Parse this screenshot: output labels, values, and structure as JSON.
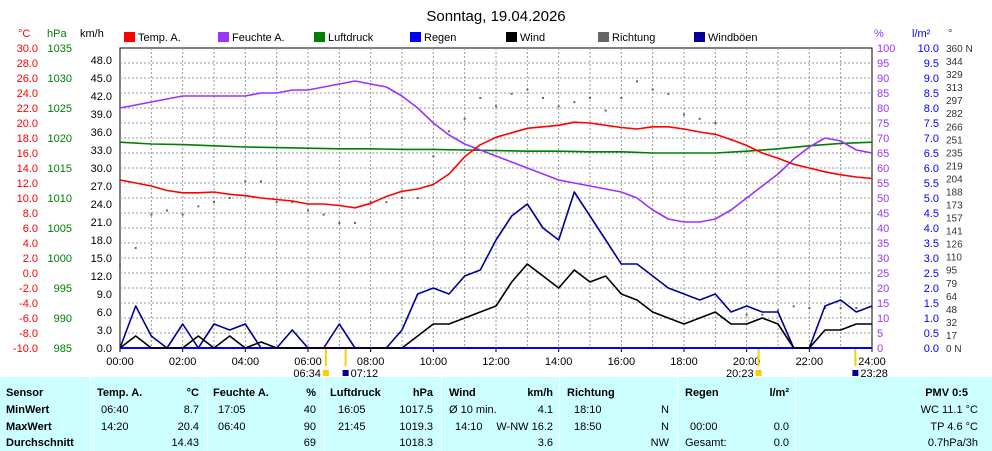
{
  "chart_data": {
    "type": "line",
    "title": "Sonntag, 19.04.2026",
    "x_ticks": [
      "00:00",
      "02:00",
      "04:00",
      "06:00",
      "08:00",
      "10:00",
      "12:00",
      "14:00",
      "16:00",
      "18:00",
      "20:00",
      "22:00",
      "24:00"
    ],
    "x_range_hours": [
      0,
      24
    ],
    "sun_markers": [
      {
        "label": "06:34",
        "time": 6.57
      },
      {
        "label": "07:12",
        "time": 7.2
      },
      {
        "label": "20:23",
        "time": 20.38
      },
      {
        "label": "23:28",
        "time": 23.47
      }
    ],
    "axes": {
      "temp": {
        "unit": "°C",
        "ylim": [
          -10,
          30
        ],
        "ticks": [
          "30.0",
          "28.0",
          "26.0",
          "24.0",
          "22.0",
          "20.0",
          "18.0",
          "16.0",
          "14.0",
          "12.0",
          "10.0",
          "8.0",
          "6.0",
          "4.0",
          "2.0",
          "0.0",
          "-2.0",
          "-4.0",
          "-6.0",
          "-8.0",
          "-10.0"
        ],
        "color": "#ff0000"
      },
      "pressure": {
        "unit": "hPa",
        "ylim": [
          985,
          1035
        ],
        "ticks": [
          "1035",
          "1030",
          "1025",
          "1020",
          "1015",
          "1010",
          "1005",
          "1000",
          "995",
          "990",
          "985"
        ],
        "color": "#008000"
      },
      "wind": {
        "unit": "km/h",
        "ylim": [
          0,
          50
        ],
        "ticks": [
          "0.0",
          "3.0",
          "6.0",
          "9.0",
          "12.0",
          "15.0",
          "18.0",
          "21.0",
          "24.0",
          "27.0",
          "30.0",
          "33.0",
          "36.0",
          "39.0",
          "42.0",
          "45.0",
          "48.0"
        ],
        "color": "#000000"
      },
      "humidity": {
        "unit": "%",
        "ylim": [
          0,
          100
        ],
        "ticks": [
          "100",
          "95",
          "90",
          "85",
          "80",
          "75",
          "70",
          "65",
          "60",
          "55",
          "50",
          "45",
          "40",
          "35",
          "30",
          "25",
          "20",
          "15",
          "10",
          "5",
          "0"
        ],
        "color": "#9933ff"
      },
      "rain": {
        "unit": "l/m²",
        "ylim": [
          0,
          10
        ],
        "ticks": [
          "10.0",
          "9.5",
          "9.0",
          "8.5",
          "8.0",
          "7.5",
          "7.0",
          "6.5",
          "6.0",
          "5.5",
          "5.0",
          "4.5",
          "4.0",
          "3.5",
          "3.0",
          "2.5",
          "2.0",
          "1.5",
          "1.0",
          "0.5",
          "0.0"
        ],
        "color": "#0000ff"
      },
      "direction": {
        "unit": "°",
        "ylim": [
          0,
          360
        ],
        "ticks": [
          "360 N",
          "344",
          "329",
          "313",
          "297",
          "282",
          "266",
          "251",
          "235",
          "219",
          "204",
          "188",
          "173",
          "157",
          "141",
          "126",
          "110",
          "95",
          "79",
          "64",
          "48",
          "32",
          "17",
          "0 N"
        ],
        "color": "#333333"
      }
    },
    "grid": true,
    "legend_position": "top",
    "series": [
      {
        "name": "Temp. A.",
        "color": "#ff0000",
        "axis": "temp",
        "x": [
          0,
          0.5,
          1,
          1.5,
          2,
          2.5,
          3,
          3.5,
          4,
          4.5,
          5,
          5.5,
          6,
          6.5,
          7,
          7.5,
          8,
          8.5,
          9,
          9.5,
          10,
          10.5,
          11,
          11.5,
          12,
          12.5,
          13,
          13.5,
          14,
          14.5,
          15,
          15.5,
          16,
          16.5,
          17,
          17.5,
          18,
          18.5,
          19,
          19.5,
          20,
          20.5,
          21,
          21.5,
          22,
          22.5,
          23,
          23.5,
          24
        ],
        "y": [
          12.4,
          12.0,
          11.6,
          11.0,
          10.7,
          10.7,
          10.8,
          10.5,
          10.3,
          10.0,
          9.8,
          9.6,
          9.2,
          9.2,
          9.0,
          8.7,
          9.3,
          10.2,
          10.9,
          11.2,
          11.8,
          13.2,
          15.5,
          17.1,
          18.1,
          18.7,
          19.3,
          19.5,
          19.7,
          20.1,
          20.0,
          19.7,
          19.4,
          19.2,
          19.5,
          19.5,
          19.2,
          18.8,
          18.5,
          17.8,
          17.0,
          16.0,
          15.3,
          14.5,
          14.0,
          13.5,
          13.1,
          12.8,
          12.6
        ]
      },
      {
        "name": "Feuchte A.",
        "color": "#9933ff",
        "axis": "humidity",
        "x": [
          0,
          0.5,
          1,
          1.5,
          2,
          2.5,
          3,
          3.5,
          4,
          4.5,
          5,
          5.5,
          6,
          6.5,
          7,
          7.5,
          8,
          8.5,
          9,
          9.5,
          10,
          10.5,
          11,
          11.5,
          12,
          12.5,
          13,
          13.5,
          14,
          14.5,
          15,
          15.5,
          16,
          16.5,
          17,
          17.5,
          18,
          18.5,
          19,
          19.5,
          20,
          20.5,
          21,
          21.5,
          22,
          22.5,
          23,
          23.5,
          24
        ],
        "y": [
          80,
          81,
          82,
          83,
          84,
          84,
          84,
          84,
          84,
          85,
          85,
          86,
          86,
          87,
          88,
          89,
          88,
          87,
          84,
          80,
          75,
          71,
          68,
          66,
          64,
          62,
          60,
          58,
          56,
          55,
          54,
          53,
          52,
          50,
          46,
          43,
          42,
          42,
          43,
          46,
          50,
          54,
          58,
          63,
          67,
          70,
          69,
          66,
          65
        ]
      },
      {
        "name": "Luftdruck",
        "color": "#008000",
        "axis": "pressure",
        "x": [
          0,
          1,
          2,
          3,
          4,
          5,
          6,
          7,
          8,
          9,
          10,
          11,
          12,
          13,
          14,
          15,
          16,
          17,
          18,
          19,
          20,
          21,
          22,
          23,
          24
        ],
        "y": [
          1019.3,
          1019.0,
          1018.9,
          1018.7,
          1018.5,
          1018.4,
          1018.3,
          1018.2,
          1018.2,
          1018.1,
          1018.1,
          1018.0,
          1017.9,
          1017.8,
          1017.8,
          1017.7,
          1017.7,
          1017.5,
          1017.5,
          1017.5,
          1017.8,
          1018.2,
          1018.7,
          1019.1,
          1019.3
        ]
      },
      {
        "name": "Regen",
        "color": "#0000ff",
        "axis": "rain",
        "x": [
          0,
          1,
          2,
          3,
          4,
          5,
          6,
          7,
          8,
          9,
          10,
          11,
          12,
          13,
          14,
          15,
          16,
          17,
          18,
          19,
          20,
          21,
          22,
          23,
          24
        ],
        "y": [
          0,
          0,
          0,
          0,
          0,
          0,
          0,
          0,
          0,
          0,
          0,
          0,
          0,
          0,
          0,
          0,
          0,
          0,
          0,
          0,
          0,
          0,
          0,
          0,
          0
        ]
      },
      {
        "name": "Wind",
        "color": "#000000",
        "axis": "wind",
        "x": [
          0,
          0.5,
          1,
          1.5,
          2,
          2.5,
          3,
          3.5,
          4,
          4.5,
          5,
          5.5,
          6,
          6.5,
          7,
          7.5,
          8,
          8.5,
          9,
          9.5,
          10,
          10.5,
          11,
          11.5,
          12,
          12.5,
          13,
          13.5,
          14,
          14.5,
          15,
          15.5,
          16,
          16.5,
          17,
          17.5,
          18,
          18.5,
          19,
          19.5,
          20,
          20.5,
          21,
          21.5,
          22,
          22.5,
          23,
          23.5,
          24
        ],
        "y": [
          0,
          2,
          0,
          0,
          0,
          2,
          0,
          2,
          0,
          1,
          0,
          0,
          0,
          0,
          0,
          0,
          0,
          0,
          0,
          2,
          4,
          4,
          5,
          6,
          7,
          11,
          14,
          12,
          10,
          13,
          11,
          12,
          9,
          8,
          6,
          5,
          4,
          5,
          6,
          4,
          4,
          5,
          4,
          0,
          0,
          3,
          3,
          4,
          4
        ]
      },
      {
        "name": "Richtung",
        "color": "#666666",
        "axis": "direction",
        "x": [
          0,
          0.5,
          1,
          1.5,
          2,
          2.5,
          3,
          3.5,
          4,
          4.5,
          5,
          5.5,
          6,
          6.5,
          7,
          7.5,
          8,
          8.5,
          9,
          9.5,
          10,
          10.5,
          11,
          11.5,
          12,
          12.5,
          13,
          13.5,
          14,
          14.5,
          15,
          15.5,
          16,
          16.5,
          17,
          17.5,
          18,
          18.5,
          19,
          19.5,
          20,
          20.5,
          21,
          21.5,
          22,
          22.5,
          23,
          23.5,
          24
        ],
        "y": [
          100,
          120,
          160,
          165,
          160,
          170,
          175,
          180,
          200,
          200,
          175,
          175,
          165,
          160,
          150,
          150,
          175,
          175,
          180,
          180,
          230,
          260,
          275,
          300,
          290,
          305,
          310,
          300,
          290,
          295,
          300,
          285,
          300,
          320,
          310,
          305,
          280,
          275,
          270,
          250,
          40,
          40,
          45,
          50,
          48,
          48,
          48,
          48,
          48
        ]
      },
      {
        "name": "Windböen",
        "color": "#000099",
        "axis": "wind",
        "x": [
          0,
          0.5,
          1,
          1.5,
          2,
          2.5,
          3,
          3.5,
          4,
          4.5,
          5,
          5.5,
          6,
          6.5,
          7,
          7.5,
          8,
          8.5,
          9,
          9.5,
          10,
          10.5,
          11,
          11.5,
          12,
          12.5,
          13,
          13.5,
          14,
          14.5,
          15,
          15.5,
          16,
          16.5,
          17,
          17.5,
          18,
          18.5,
          19,
          19.5,
          20,
          20.5,
          21,
          21.5,
          22,
          22.5,
          23,
          23.5,
          24
        ],
        "y": [
          0,
          7,
          2,
          0,
          4,
          0,
          4,
          3,
          4,
          0,
          0,
          3,
          0,
          0,
          4,
          0,
          0,
          0,
          3,
          9,
          10,
          9,
          12,
          13,
          18,
          22,
          24,
          20,
          18,
          26,
          22,
          18,
          14,
          14,
          12,
          10,
          9,
          8,
          9,
          6,
          7,
          6,
          6,
          0,
          0,
          7,
          8,
          6,
          7
        ]
      }
    ]
  },
  "stats": {
    "headers": {
      "sensor": "Sensor",
      "temp": "Temp. A.",
      "temp_unit": "°C",
      "hum": "Feuchte A.",
      "hum_unit": "%",
      "press": "Luftdruck",
      "press_unit": "hPa",
      "wind": "Wind",
      "wind_unit": "km/h",
      "dir": "Richtung",
      "rain": "Regen",
      "rain_unit": "l/m²",
      "pmv": "PMV 0:5"
    },
    "rows": [
      {
        "label": "MinWert",
        "temp_time": "06:40",
        "temp": "8.7",
        "hum_time": "17:05",
        "hum": "40",
        "press_time": "16:05",
        "press": "1017.5",
        "wind_time": "Ø 10 min.",
        "wind": "4.1",
        "dir_time": "18:10",
        "dir": "N",
        "rain_time": "",
        "rain": "",
        "extra": "WC 11.1 °C"
      },
      {
        "label": "MaxWert",
        "temp_time": "14:20",
        "temp": "20.4",
        "hum_time": "06:40",
        "hum": "90",
        "press_time": "21:45",
        "press": "1019.3",
        "wind_time": "14:10",
        "wind": "W-NW 16.2",
        "dir_time": "18:50",
        "dir": "N",
        "rain_time": "00:00",
        "rain": "0.0",
        "extra": "TP 4.6 °C"
      },
      {
        "label": "Durchschnitt",
        "temp_time": "",
        "temp": "14.43",
        "hum_time": "",
        "hum": "69",
        "press_time": "",
        "press": "1018.3",
        "wind_time": "",
        "wind": "3.6",
        "dir_time": "",
        "dir": "NW",
        "rain_time": "Gesamt:",
        "rain": "0.0",
        "extra": "0.7hPa/3h"
      }
    ]
  }
}
